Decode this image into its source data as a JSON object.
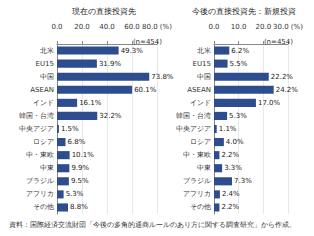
{
  "chart_data": [
    {
      "type": "bar",
      "orientation": "horizontal",
      "title": "現在の直接投資先",
      "annotations": [
        "(n=454)"
      ],
      "categories": [
        "北米",
        "EU15",
        "中国",
        "ASEAN",
        "インド",
        "韓国・台湾",
        "中央アジア",
        "ロシア",
        "中・東欧",
        "中東",
        "ブラジル",
        "アフリカ",
        "その他"
      ],
      "values": [
        49.3,
        31.9,
        73.8,
        60.1,
        16.1,
        32.2,
        1.5,
        6.8,
        10.1,
        9.9,
        9.5,
        5.3,
        8.8
      ],
      "value_labels": [
        "49.3%",
        "31.9%",
        "73.8%",
        "60.1%",
        "16.1%",
        "32.2%",
        "1.5%",
        "6.8%",
        "10.1%",
        "9.9%",
        "9.5%",
        "5.3%",
        "8.8%"
      ],
      "color": "#2e4d8f",
      "xlim": [
        0,
        80
      ],
      "xticks": [
        {
          "value": 0,
          "label": "0.0"
        },
        {
          "value": 20,
          "label": "20.0"
        },
        {
          "value": 40,
          "label": "40.0"
        },
        {
          "value": 60,
          "label": "60.0"
        },
        {
          "value": 80,
          "label": "80.0 (%)"
        }
      ],
      "grid": true,
      "data_labels": true
    },
    {
      "type": "bar",
      "orientation": "horizontal",
      "title": "今後の直接投資先：新規投資",
      "annotations": [
        "(n=454)"
      ],
      "categories": [
        "北米",
        "EU15",
        "中国",
        "ASEAN",
        "インド",
        "韓国・台湾",
        "中央アジア",
        "ロシア",
        "中・東欧",
        "中東",
        "ブラジル",
        "アフリカ",
        "その他"
      ],
      "values": [
        6.2,
        5.5,
        22.2,
        24.2,
        17,
        5.3,
        1.1,
        4,
        2.2,
        3.3,
        7.3,
        2.4,
        2.2
      ],
      "value_labels": [
        "6.2%",
        "5.5%",
        "22.2%",
        "24.2%",
        "17.0%",
        "5.3%",
        "1.1%",
        "4.0%",
        "2.2%",
        "3.3%",
        "7.3%",
        "2.4%",
        "2.2%"
      ],
      "color": "#2e4d8f",
      "xlim": [
        0,
        30
      ],
      "xticks": [
        {
          "value": 0,
          "label": "0.0"
        },
        {
          "value": 10,
          "label": "10.0"
        },
        {
          "value": 20,
          "label": "20.0"
        },
        {
          "value": 30,
          "label": "30.0 (%)"
        }
      ],
      "grid": true,
      "data_labels": true
    }
  ],
  "source": "資料：国際経済交流財団「今後の多角的通商ルールのあり方に関する調査研究」から作成。"
}
